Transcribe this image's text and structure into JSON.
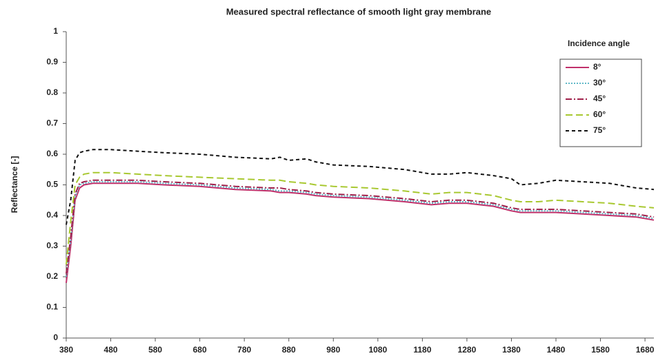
{
  "chart_data": {
    "type": "line",
    "title": "Measured spectral reflectance of smooth light gray membrane",
    "y_label": "Reflectance [-]",
    "legend_title": "Incidence angle",
    "legend": "upper right",
    "xlim": [
      380,
      1700
    ],
    "ylim": [
      0,
      1
    ],
    "xticks": [
      380,
      480,
      580,
      680,
      780,
      880,
      980,
      1080,
      1180,
      1280,
      1380,
      1480,
      1580,
      1680
    ],
    "yticks": [
      0,
      0.1,
      0.2,
      0.3,
      0.4,
      0.5,
      0.6,
      0.7,
      0.8,
      0.9,
      1
    ],
    "x": [
      380,
      390,
      400,
      410,
      420,
      440,
      480,
      540,
      600,
      680,
      760,
      840,
      860,
      880,
      920,
      940,
      980,
      1060,
      1140,
      1200,
      1240,
      1280,
      1340,
      1380,
      1400,
      1440,
      1480,
      1540,
      1600,
      1660,
      1700
    ],
    "series": [
      {
        "name": "8°",
        "color": "#c0306a",
        "line_style": "solid",
        "values": [
          0.18,
          0.3,
          0.45,
          0.49,
          0.5,
          0.505,
          0.505,
          0.505,
          0.5,
          0.495,
          0.485,
          0.48,
          0.475,
          0.475,
          0.47,
          0.465,
          0.46,
          0.455,
          0.445,
          0.435,
          0.44,
          0.44,
          0.43,
          0.415,
          0.41,
          0.41,
          0.41,
          0.405,
          0.4,
          0.395,
          0.385
        ]
      },
      {
        "name": "30°",
        "color": "#5fb8c8",
        "line_style": "dotted",
        "values": [
          0.2,
          0.32,
          0.46,
          0.5,
          0.505,
          0.51,
          0.51,
          0.51,
          0.505,
          0.5,
          0.49,
          0.485,
          0.48,
          0.48,
          0.475,
          0.47,
          0.465,
          0.46,
          0.45,
          0.44,
          0.445,
          0.445,
          0.435,
          0.42,
          0.415,
          0.415,
          0.415,
          0.41,
          0.405,
          0.4,
          0.39
        ]
      },
      {
        "name": "45°",
        "color": "#a0204a",
        "line_style": "dash-dot",
        "values": [
          0.21,
          0.33,
          0.47,
          0.505,
          0.51,
          0.515,
          0.515,
          0.515,
          0.51,
          0.505,
          0.495,
          0.49,
          0.49,
          0.485,
          0.48,
          0.475,
          0.47,
          0.465,
          0.455,
          0.445,
          0.45,
          0.45,
          0.44,
          0.425,
          0.42,
          0.42,
          0.42,
          0.415,
          0.41,
          0.405,
          0.395
        ]
      },
      {
        "name": "60°",
        "color": "#a8c830",
        "line_style": "dashed",
        "values": [
          0.24,
          0.38,
          0.5,
          0.525,
          0.535,
          0.54,
          0.54,
          0.535,
          0.53,
          0.525,
          0.52,
          0.515,
          0.515,
          0.51,
          0.505,
          0.5,
          0.495,
          0.49,
          0.48,
          0.47,
          0.475,
          0.475,
          0.465,
          0.45,
          0.445,
          0.445,
          0.45,
          0.445,
          0.44,
          0.43,
          0.425
        ]
      },
      {
        "name": "75°",
        "color": "#111111",
        "line_style": "short-dashed",
        "values": [
          0.37,
          0.45,
          0.58,
          0.605,
          0.61,
          0.615,
          0.615,
          0.61,
          0.605,
          0.6,
          0.59,
          0.585,
          0.59,
          0.58,
          0.585,
          0.575,
          0.565,
          0.56,
          0.55,
          0.535,
          0.535,
          0.54,
          0.53,
          0.52,
          0.5,
          0.505,
          0.515,
          0.51,
          0.505,
          0.49,
          0.485
        ]
      }
    ]
  }
}
